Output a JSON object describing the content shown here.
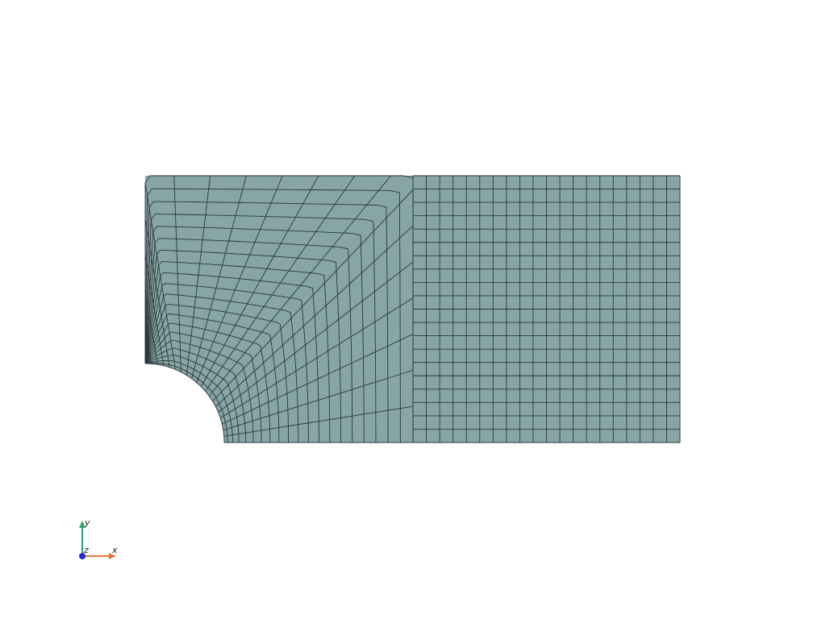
{
  "viewer": {
    "background": "#ffffff"
  },
  "mesh": {
    "fill_color": "#87a4a6",
    "edge_color": "#2a3838",
    "hole_quadrant": "bottom-left",
    "structured_block_columns": 20,
    "rows": 20,
    "transition_block_radial_divisions": 20,
    "transition_block_arc_divisions": 20
  },
  "orientation_axes": {
    "x_label": "x",
    "y_label": "y",
    "z_label": "z",
    "x_color": "#e8763a",
    "y_color": "#2fa36b",
    "z_color": "#1f2fd1"
  }
}
